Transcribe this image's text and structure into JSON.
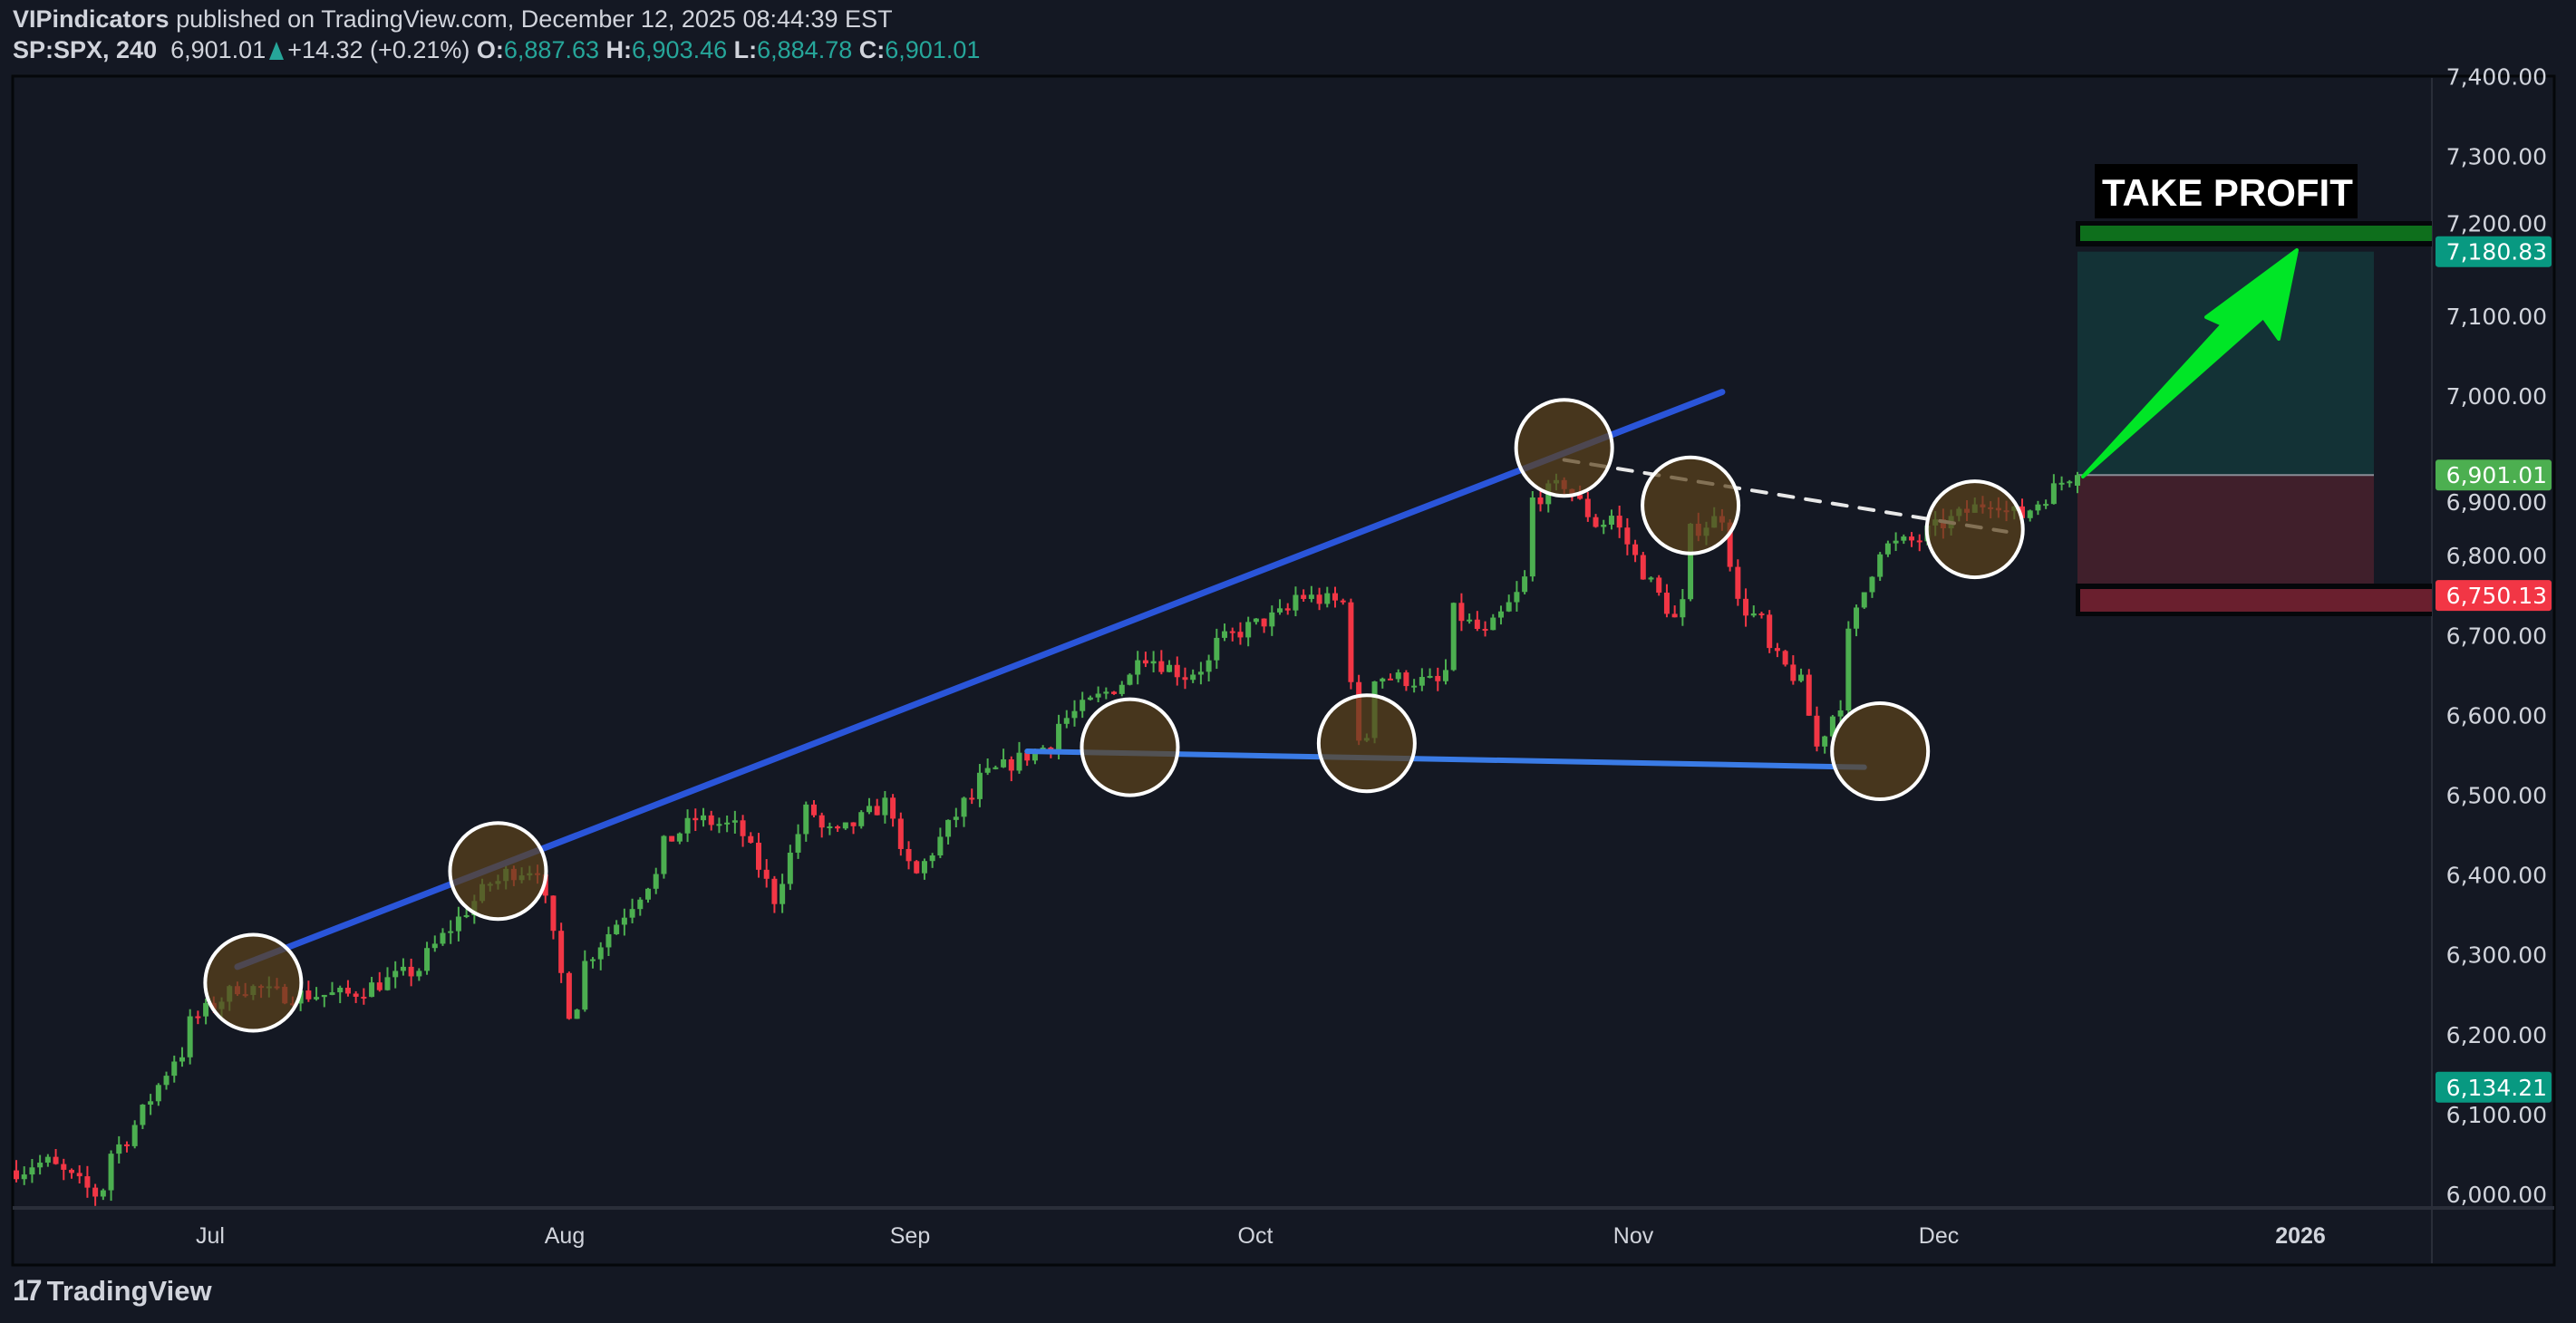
{
  "header": {
    "author": "VIPindicators",
    "published_text": "published on TradingView.com, December 12, 2025 08:44:39 EST",
    "symbol": "SP:SPX, 240",
    "last": "6,901.01",
    "change": "+14.32 (+0.21%)",
    "o_label": "O:",
    "o": "6,887.63",
    "h_label": "H:",
    "h": "6,903.46",
    "l_label": "L:",
    "l": "6,884.78",
    "c_label": "C:",
    "c": "6,901.01"
  },
  "footer": {
    "logo_mark": "17",
    "brand": "TradingView"
  },
  "colors": {
    "up": "#4caf50",
    "down": "#f23645",
    "bg": "#141823",
    "trend_upper": "#2a55d9",
    "trend_lower": "#3a7be6",
    "arrow": "#00e626"
  },
  "chart_data": {
    "type": "candlestick",
    "interval": "240",
    "ylim": [
      6000,
      7400
    ],
    "y_ticks": [
      "6,000.00",
      "6,100.00",
      "6,200.00",
      "6,300.00",
      "6,400.00",
      "6,500.00",
      "6,600.00",
      "6,700.00",
      "6,800.00",
      "6,900.00",
      "7,000.00",
      "7,100.00",
      "7,200.00",
      "7,300.00",
      "7,400.00"
    ],
    "y_tick_values": [
      6000,
      6100,
      6200,
      6300,
      6400,
      6500,
      6600,
      6700,
      6800,
      6900,
      7000,
      7100,
      7200,
      7300,
      7400
    ],
    "x_ticks": [
      "Jul",
      "Aug",
      "Sep",
      "Oct",
      "Nov",
      "Dec",
      "2026"
    ],
    "start_date": "2025-06-13",
    "end_date": "2025-12-12",
    "close_waypoints": [
      [
        "2025-06-13",
        6030
      ],
      [
        "2025-06-17",
        6040
      ],
      [
        "2025-06-20",
        6000
      ],
      [
        "2025-06-24",
        6070
      ],
      [
        "2025-06-27",
        6170
      ],
      [
        "2025-07-03",
        6260
      ],
      [
        "2025-07-08",
        6250
      ],
      [
        "2025-07-14",
        6250
      ],
      [
        "2025-07-21",
        6300
      ],
      [
        "2025-07-25",
        6390
      ],
      [
        "2025-07-30",
        6410
      ],
      [
        "2025-08-01",
        6230
      ],
      [
        "2025-08-04",
        6290
      ],
      [
        "2025-08-08",
        6390
      ],
      [
        "2025-08-13",
        6470
      ],
      [
        "2025-08-18",
        6450
      ],
      [
        "2025-08-20",
        6370
      ],
      [
        "2025-08-22",
        6480
      ],
      [
        "2025-08-26",
        6450
      ],
      [
        "2025-08-29",
        6490
      ],
      [
        "2025-09-02",
        6400
      ],
      [
        "2025-09-05",
        6490
      ],
      [
        "2025-09-11",
        6550
      ],
      [
        "2025-09-15",
        6590
      ],
      [
        "2025-09-22",
        6680
      ],
      [
        "2025-09-25",
        6650
      ],
      [
        "2025-10-01",
        6710
      ],
      [
        "2025-10-06",
        6750
      ],
      [
        "2025-10-09",
        6740
      ],
      [
        "2025-10-10",
        6560
      ],
      [
        "2025-10-13",
        6650
      ],
      [
        "2025-10-17",
        6640
      ],
      [
        "2025-10-20",
        6730
      ],
      [
        "2025-10-22",
        6700
      ],
      [
        "2025-10-24",
        6750
      ],
      [
        "2025-10-27",
        6870
      ],
      [
        "2025-10-29",
        6890
      ],
      [
        "2025-10-31",
        6840
      ],
      [
        "2025-11-03",
        6850
      ],
      [
        "2025-11-05",
        6780
      ],
      [
        "2025-11-07",
        6720
      ],
      [
        "2025-11-10",
        6830
      ],
      [
        "2025-11-12",
        6850
      ],
      [
        "2025-11-13",
        6740
      ],
      [
        "2025-11-17",
        6680
      ],
      [
        "2025-11-19",
        6640
      ],
      [
        "2025-11-20",
        6560
      ],
      [
        "2025-11-21",
        6600
      ],
      [
        "2025-11-24",
        6700
      ],
      [
        "2025-11-26",
        6810
      ],
      [
        "2025-12-01",
        6830
      ],
      [
        "2025-12-05",
        6870
      ],
      [
        "2025-12-09",
        6850
      ],
      [
        "2025-12-12",
        6901.01
      ]
    ],
    "price_badges": [
      {
        "label": "7,180.83",
        "value": 7180.83,
        "color": "#089981"
      },
      {
        "label": "6,901.01",
        "value": 6901.01,
        "color": "#4caf50"
      },
      {
        "label": "6,750.13",
        "value": 6750.13,
        "color": "#f23645"
      },
      {
        "label": "6,134.21",
        "value": 6134.21,
        "color": "#089981"
      }
    ],
    "position": {
      "type": "long",
      "entry": 6901.01,
      "take_profit": 7180.83,
      "stop_loss": 6750.13
    },
    "annotations": {
      "take_profit_label": "TAKE PROFIT"
    },
    "trendlines": [
      {
        "name": "upper-trendline",
        "from": [
          "2025-07-03",
          6285
        ],
        "to": [
          "2025-11-12",
          7005
        ]
      },
      {
        "name": "support-line",
        "from": [
          "2025-09-11",
          6555
        ],
        "to": [
          "2025-11-25",
          6535
        ]
      },
      {
        "name": "neckline-dashed",
        "from": [
          "2025-10-29",
          6920
        ],
        "to": [
          "2025-12-08",
          6830
        ]
      }
    ],
    "touch_points": [
      [
        "2025-07-04",
        6265
      ],
      [
        "2025-07-27",
        6405
      ],
      [
        "2025-09-20",
        6560
      ],
      [
        "2025-10-12",
        6565
      ],
      [
        "2025-10-29",
        6935
      ],
      [
        "2025-11-10",
        6863
      ],
      [
        "2025-12-04",
        6833
      ],
      [
        "2025-11-26",
        6555
      ]
    ]
  }
}
